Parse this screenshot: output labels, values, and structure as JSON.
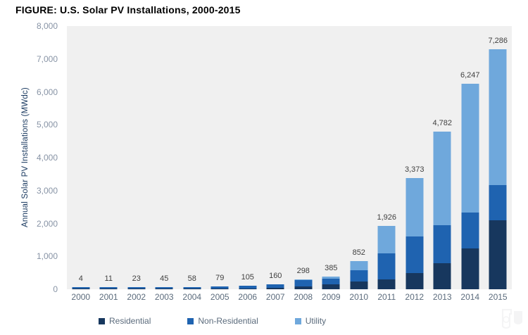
{
  "title": "FIGURE: U.S. Solar PV Installations, 2000-2015",
  "y_axis": {
    "title": "Annual Solar PV Installations (MWdc)",
    "tick_values": [
      0,
      1000,
      2000,
      3000,
      4000,
      5000,
      6000,
      7000,
      8000
    ],
    "tick_labels": [
      "0",
      "1,000",
      "2,000",
      "3,000",
      "4,000",
      "5,000",
      "6,000",
      "7,000",
      "8,000"
    ]
  },
  "colors": {
    "residential": "#17375E",
    "non_residential": "#1F63B0",
    "utility": "#6FA8DC",
    "plot_bg": "#F0F0F0",
    "tick_label": "#8793A5",
    "x_label": "#5B6B7C",
    "data_label": "#404040",
    "axis_title": "#17375E",
    "legend_text": "#5B6B7C",
    "title_text": "#000000"
  },
  "legend": {
    "items": [
      {
        "key": "residential",
        "label": "Residential"
      },
      {
        "key": "non_residential",
        "label": "Non-Residential"
      },
      {
        "key": "utility",
        "label": "Utility"
      }
    ]
  },
  "chart_data": {
    "type": "bar",
    "stacked": true,
    "title": "FIGURE: U.S. Solar PV Installations, 2000-2015",
    "xlabel": "",
    "ylabel": "Annual Solar PV Installations (MWdc)",
    "ylim": [
      0,
      8000
    ],
    "grid": false,
    "legend_position": "bottom",
    "categories": [
      "2000",
      "2001",
      "2002",
      "2003",
      "2004",
      "2005",
      "2006",
      "2007",
      "2008",
      "2009",
      "2010",
      "2011",
      "2012",
      "2013",
      "2014",
      "2015"
    ],
    "series": [
      {
        "key": "residential",
        "name": "Residential",
        "values": [
          2,
          4,
          8,
          15,
          20,
          25,
          30,
          43,
          78,
          156,
          246,
          297,
          488,
          792,
          1231,
          2099
        ]
      },
      {
        "key": "non_residential",
        "name": "Non-Residential",
        "values": [
          2,
          7,
          15,
          30,
          38,
          54,
          70,
          112,
          207,
          171,
          336,
          800,
          1107,
          1148,
          1107,
          1071
        ]
      },
      {
        "key": "utility",
        "name": "Utility",
        "values": [
          0,
          0,
          0,
          0,
          0,
          0,
          5,
          5,
          13,
          58,
          270,
          829,
          1778,
          2842,
          3909,
          4116
        ]
      }
    ],
    "totals": [
      4,
      11,
      23,
      45,
      58,
      79,
      105,
      160,
      298,
      385,
      852,
      1926,
      3373,
      4782,
      6247,
      7286
    ],
    "totals_label": [
      "4",
      "11",
      "23",
      "45",
      "58",
      "79",
      "105",
      "160",
      "298",
      "385",
      "852",
      "1,926",
      "3,373",
      "4,782",
      "6,247",
      "7,286"
    ]
  }
}
